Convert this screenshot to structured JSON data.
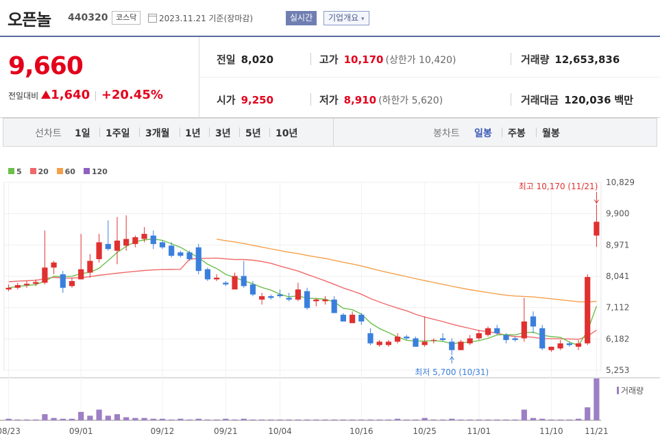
{
  "header": {
    "name": "오픈놀",
    "code": "440320",
    "market": "코스닥",
    "date_text": "2023.11.21 기준(장마감)",
    "realtime_label": "실시간",
    "company_label": "기업개요"
  },
  "summary": {
    "price": "9,660",
    "change_label": "전일대비",
    "change_amount": "1,640",
    "change_pct": "+20.45%",
    "prev_label": "전일",
    "prev": "8,020",
    "open_label": "시가",
    "open": "9,250",
    "high_label": "고가",
    "high": "10,170",
    "upper_limit": "(상한가 10,420)",
    "low_label": "저가",
    "low": "8,910",
    "lower_limit": "(하한가 5,620)",
    "volume_label": "거래량",
    "volume": "12,653,836",
    "amount_label": "거래대금",
    "amount": "120,036",
    "amount_unit": "백만"
  },
  "toolbar": {
    "line_label": "선차트",
    "ranges": [
      "1일",
      "1주일",
      "3개월",
      "1년",
      "3년",
      "5년",
      "10년"
    ],
    "candle_label": "봉차트",
    "periods": [
      "일봉",
      "주봉",
      "월봉"
    ],
    "active_period": "일봉"
  },
  "colors": {
    "up": "#e03030",
    "down": "#3a7fdc",
    "ma5": "#6cbf4a",
    "ma20": "#f06868",
    "ma60": "#f5a04a",
    "ma120": "#9060c0",
    "volume": "#9c7fc4"
  },
  "chart_data": {
    "type": "candlestick",
    "legend": [
      "5",
      "20",
      "60",
      "120"
    ],
    "y_ticks": [
      10829,
      9900,
      8971,
      8041,
      7112,
      6182,
      5253
    ],
    "ylim": [
      5253,
      10829
    ],
    "x_ticks": [
      "08/23",
      "09/01",
      "09/12",
      "09/21",
      "10/04",
      "10/16",
      "10/25",
      "11/01",
      "11/10",
      "11/21"
    ],
    "volume_label": "거래량",
    "high_annotation": "최고 10,170 (11/21)",
    "low_annotation": "최저 5,700 (10/31)",
    "candles": [
      [
        7650,
        7800,
        7600,
        7700
      ],
      [
        7700,
        7850,
        7650,
        7780
      ],
      [
        7780,
        7900,
        7700,
        7820
      ],
      [
        7820,
        7950,
        7750,
        7870
      ],
      [
        7850,
        9400,
        7800,
        8300
      ],
      [
        8300,
        8500,
        8100,
        8450
      ],
      [
        8100,
        8200,
        7550,
        7700
      ],
      [
        7750,
        8000,
        7700,
        7900
      ],
      [
        7950,
        9300,
        7950,
        8250
      ],
      [
        8150,
        8700,
        8000,
        8500
      ],
      [
        8550,
        9300,
        8450,
        9050
      ],
      [
        9000,
        9700,
        8800,
        8850
      ],
      [
        8800,
        9800,
        8400,
        9100
      ],
      [
        8950,
        9850,
        8800,
        9150
      ],
      [
        9000,
        9250,
        8900,
        9200
      ],
      [
        9150,
        9500,
        9050,
        9300
      ],
      [
        9250,
        9400,
        8850,
        9000
      ],
      [
        9050,
        9100,
        8850,
        8900
      ],
      [
        8950,
        9050,
        8600,
        8650
      ],
      [
        8750,
        8800,
        8600,
        8650
      ],
      [
        8750,
        8800,
        8500,
        8550
      ],
      [
        8900,
        9000,
        8100,
        8200
      ],
      [
        8250,
        8300,
        7900,
        7950
      ],
      [
        7950,
        8100,
        7900,
        8000
      ],
      [
        7850,
        7900,
        7750,
        7800
      ],
      [
        7650,
        8150,
        7650,
        8050
      ],
      [
        8050,
        8500,
        7700,
        7750
      ],
      [
        7800,
        7900,
        7450,
        7500
      ],
      [
        7350,
        7550,
        7200,
        7450
      ],
      [
        7450,
        7500,
        7350,
        7400
      ],
      [
        7500,
        7650,
        7400,
        7450
      ],
      [
        7400,
        7550,
        7300,
        7350
      ],
      [
        7350,
        7850,
        7300,
        7650
      ],
      [
        7600,
        7700,
        7050,
        7100
      ],
      [
        7300,
        7400,
        7150,
        7350
      ],
      [
        7300,
        7450,
        7200,
        7350
      ],
      [
        7350,
        7450,
        6950,
        6950
      ],
      [
        6900,
        6950,
        6700,
        6700
      ],
      [
        6650,
        7000,
        6650,
        6900
      ],
      [
        6900,
        6950,
        6600,
        6700
      ],
      [
        6350,
        6500,
        6000,
        6050
      ],
      [
        6000,
        6150,
        5950,
        6100
      ],
      [
        6000,
        6150,
        5950,
        6100
      ],
      [
        6100,
        6350,
        6050,
        6250
      ],
      [
        6250,
        6300,
        6150,
        6200
      ],
      [
        6200,
        6250,
        5950,
        5950
      ],
      [
        6000,
        6850,
        5950,
        6100
      ],
      [
        6150,
        6200,
        6050,
        6150
      ],
      [
        6200,
        6350,
        6100,
        6150
      ],
      [
        6100,
        6200,
        5700,
        5850
      ],
      [
        5850,
        6150,
        5850,
        6100
      ],
      [
        6050,
        6300,
        6000,
        6200
      ],
      [
        6200,
        6450,
        6150,
        6350
      ],
      [
        6300,
        6550,
        6250,
        6500
      ],
      [
        6500,
        6600,
        6300,
        6350
      ],
      [
        6300,
        6350,
        6050,
        6150
      ],
      [
        6200,
        6250,
        6100,
        6150
      ],
      [
        6200,
        7400,
        6100,
        6700
      ],
      [
        6850,
        7000,
        6350,
        6550
      ],
      [
        6500,
        6600,
        5850,
        5900
      ],
      [
        5850,
        5950,
        5800,
        5950
      ],
      [
        5900,
        6150,
        5850,
        6050
      ],
      [
        6050,
        6100,
        5950,
        6000
      ],
      [
        5950,
        6150,
        5850,
        6050
      ],
      [
        6050,
        8100,
        6000,
        8020
      ],
      [
        9250,
        10170,
        8910,
        9660
      ]
    ],
    "volumes": [
      0.2,
      0.1,
      0.1,
      0.1,
      0.8,
      0.3,
      0.2,
      0.2,
      1.1,
      0.6,
      1.4,
      0.6,
      0.8,
      0.4,
      0.3,
      0.3,
      0.2,
      0.2,
      0.1,
      0.2,
      0.1,
      0.2,
      0.1,
      0.1,
      0.2,
      0.1,
      0.2,
      0.1,
      0.1,
      0.1,
      0.1,
      0.1,
      0.1,
      0.1,
      0.1,
      0.1,
      0.1,
      0.1,
      0.1,
      0.1,
      0.1,
      0.1,
      0.1,
      0.2,
      0.1,
      0.1,
      0.3,
      0.1,
      0.1,
      0.2,
      0.1,
      0.1,
      0.1,
      0.1,
      0.1,
      0.1,
      0.1,
      1.4,
      0.3,
      0.2,
      0.1,
      0.1,
      0.1,
      0.2,
      1.7,
      5.5
    ]
  }
}
